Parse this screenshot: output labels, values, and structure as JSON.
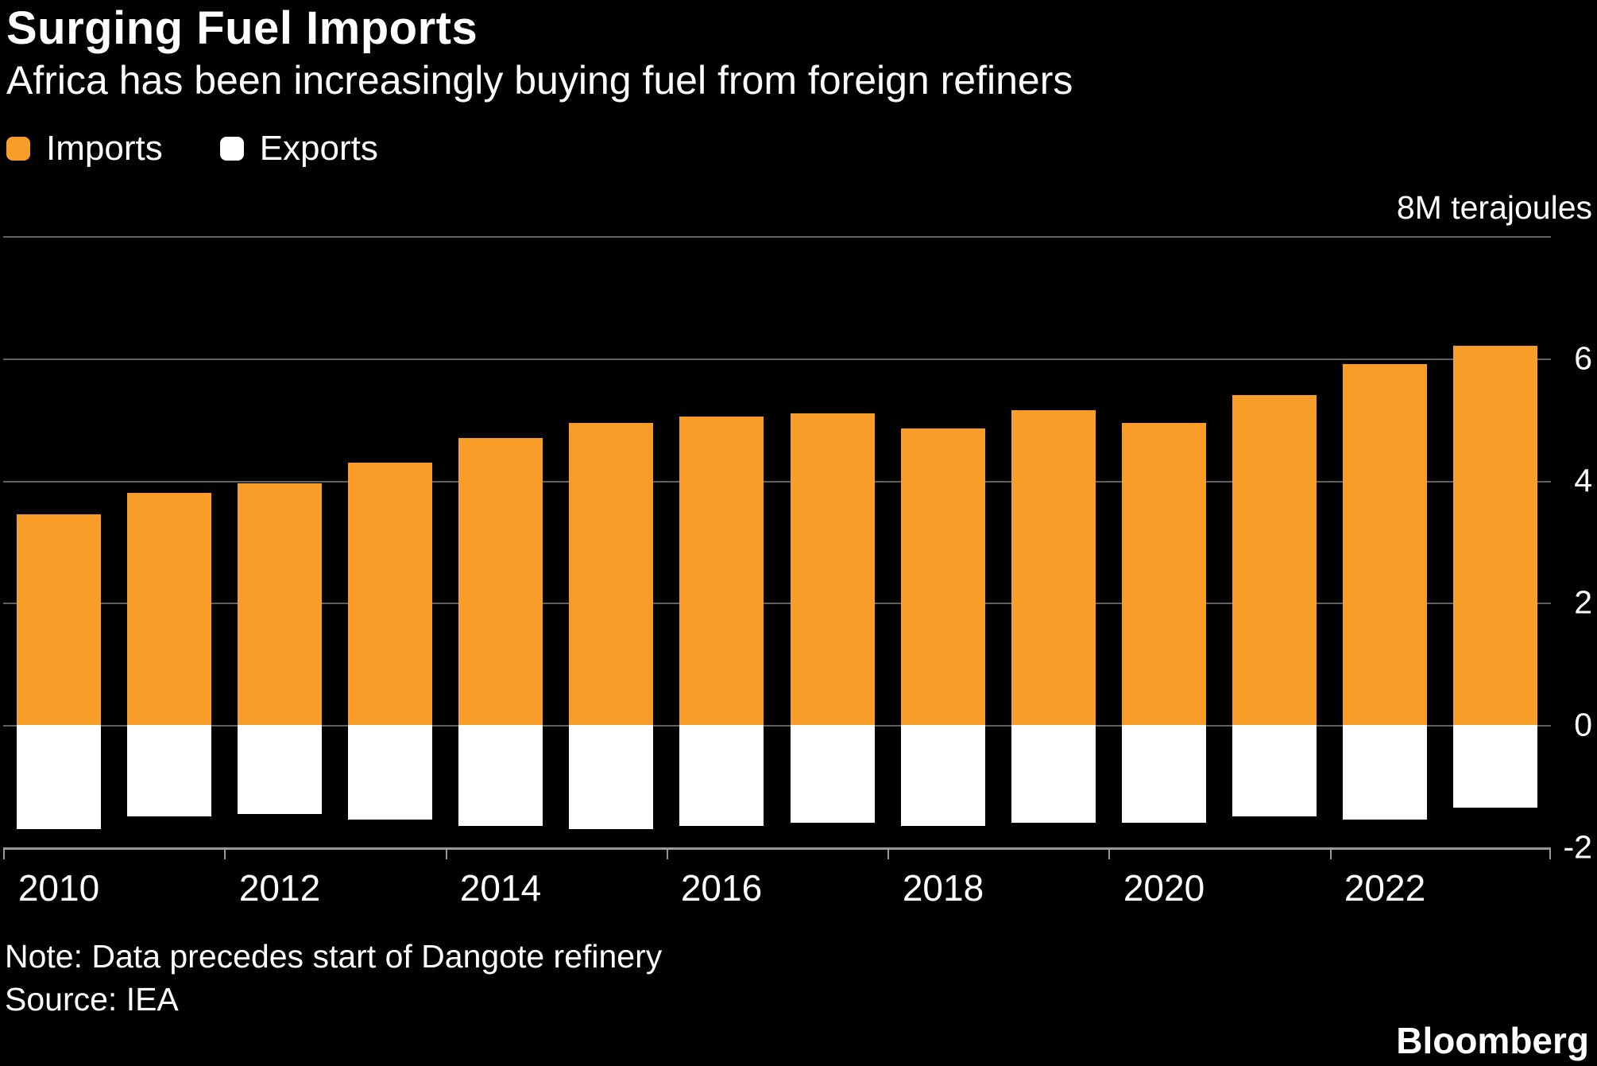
{
  "header": {
    "title": "Surging Fuel Imports",
    "subtitle": "Africa has been increasingly buying fuel from foreign refiners"
  },
  "legend": {
    "items": [
      {
        "label": "Imports",
        "color": "#F89D28"
      },
      {
        "label": "Exports",
        "color": "#FFFFFF"
      }
    ]
  },
  "chart_data": {
    "type": "bar",
    "title": "Surging Fuel Imports",
    "subtitle": "Africa has been increasingly buying fuel from foreign refiners",
    "unit_label": "8M terajoules",
    "categories": [
      2010,
      2011,
      2012,
      2013,
      2014,
      2015,
      2016,
      2017,
      2018,
      2019,
      2020,
      2021,
      2022,
      2023
    ],
    "series": [
      {
        "name": "Imports",
        "color": "#F89D28",
        "values": [
          3.45,
          3.8,
          3.95,
          4.3,
          4.7,
          4.95,
          5.05,
          5.1,
          4.85,
          5.15,
          4.95,
          5.4,
          5.9,
          6.2
        ]
      },
      {
        "name": "Exports",
        "color": "#FFFFFF",
        "values": [
          -1.7,
          -1.5,
          -1.45,
          -1.55,
          -1.65,
          -1.7,
          -1.65,
          -1.6,
          -1.65,
          -1.6,
          -1.6,
          -1.5,
          -1.55,
          -1.35
        ]
      }
    ],
    "ylim": [
      -2,
      8
    ],
    "yticks": [
      {
        "value": 8,
        "label": ""
      },
      {
        "value": 6,
        "label": "6"
      },
      {
        "value": 4,
        "label": "4"
      },
      {
        "value": 2,
        "label": "2"
      },
      {
        "value": 0,
        "label": "0"
      },
      {
        "value": -2,
        "label": "-2"
      }
    ],
    "xticks": [
      {
        "index": 0,
        "label": "2010"
      },
      {
        "index": 2,
        "label": "2012"
      },
      {
        "index": 4,
        "label": "2014"
      },
      {
        "index": 6,
        "label": "2016"
      },
      {
        "index": 8,
        "label": "2018"
      },
      {
        "index": 10,
        "label": "2020"
      },
      {
        "index": 12,
        "label": "2022"
      }
    ],
    "grid": "horizontal",
    "legend_position": "top-left",
    "background": "#000000"
  },
  "footer": {
    "note": "Note: Data precedes start of Dangote refinery",
    "source": "Source: IEA",
    "brand": "Bloomberg"
  }
}
